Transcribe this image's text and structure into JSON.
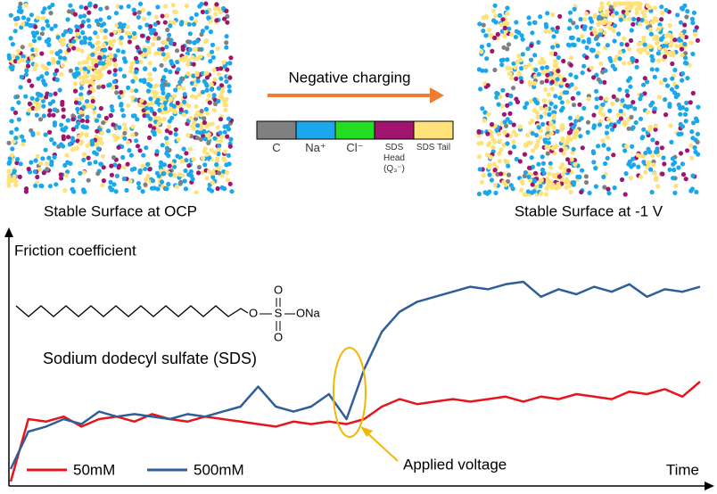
{
  "panels": {
    "left_caption": "Stable Surface at OCP",
    "right_caption": "Stable Surface at -1 V",
    "arrow_label": "Negative charging",
    "arrow_color": "#ed7d31"
  },
  "color_key": [
    {
      "label": "C",
      "color": "#808080"
    },
    {
      "label": "Na⁺",
      "color": "#1aa7ec"
    },
    {
      "label": "Cl⁻",
      "color": "#22dd22"
    },
    {
      "label": "SDS Head (Q₃⁻)",
      "color": "#a01470"
    },
    {
      "label": "SDS Tail",
      "color": "#ffe27a"
    }
  ],
  "molecule": {
    "name": "Sodium dodecyl sulfate (SDS)",
    "atoms": [
      "O",
      "S",
      "O",
      "O",
      "ONa"
    ]
  },
  "chart_data": {
    "type": "line",
    "ylabel": "Friction coefficient",
    "xlabel": "Time",
    "annotation": "Applied voltage",
    "ylim": [
      0,
      1
    ],
    "series": [
      {
        "name": "50mM",
        "color": "#e8141b",
        "values": [
          0.0,
          0.25,
          0.24,
          0.26,
          0.22,
          0.25,
          0.26,
          0.24,
          0.27,
          0.25,
          0.24,
          0.26,
          0.25,
          0.24,
          0.23,
          0.22,
          0.24,
          0.23,
          0.24,
          0.23,
          0.25,
          0.3,
          0.33,
          0.31,
          0.32,
          0.33,
          0.32,
          0.33,
          0.34,
          0.32,
          0.34,
          0.33,
          0.35,
          0.34,
          0.33,
          0.36,
          0.35,
          0.37,
          0.34,
          0.4
        ]
      },
      {
        "name": "500mM",
        "color": "#2f5f98",
        "values": [
          0.05,
          0.2,
          0.22,
          0.25,
          0.23,
          0.28,
          0.26,
          0.27,
          0.26,
          0.25,
          0.27,
          0.26,
          0.28,
          0.3,
          0.38,
          0.3,
          0.28,
          0.3,
          0.35,
          0.25,
          0.45,
          0.6,
          0.68,
          0.72,
          0.74,
          0.76,
          0.78,
          0.77,
          0.79,
          0.8,
          0.74,
          0.77,
          0.75,
          0.78,
          0.76,
          0.79,
          0.74,
          0.77,
          0.76,
          0.78
        ]
      }
    ]
  }
}
